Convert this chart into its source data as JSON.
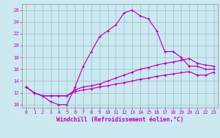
{
  "xlabel": "Windchill (Refroidissement éolien,°C)",
  "bg_color": "#cce8f0",
  "line_color": "#bb00bb",
  "grid_color": "#99bbcc",
  "xlim": [
    -0.5,
    23.5
  ],
  "ylim": [
    9.5,
    27
  ],
  "xticks": [
    0,
    1,
    2,
    3,
    4,
    5,
    6,
    7,
    8,
    9,
    10,
    11,
    12,
    13,
    14,
    15,
    16,
    17,
    18,
    19,
    20,
    21,
    22,
    23
  ],
  "yticks": [
    10,
    12,
    14,
    16,
    18,
    20,
    22,
    24,
    26
  ],
  "line1_x": [
    0,
    1,
    2,
    3,
    4,
    5,
    6,
    7,
    8,
    9,
    10,
    11,
    12,
    13,
    14,
    15,
    16,
    17,
    18,
    19,
    20,
    21,
    22,
    23
  ],
  "line1_y": [
    13.0,
    12.0,
    11.5,
    10.5,
    10.0,
    10.0,
    13.0,
    16.5,
    19.0,
    21.5,
    22.5,
    23.5,
    25.5,
    26.0,
    25.0,
    24.5,
    22.5,
    19.0,
    19.0,
    18.0,
    16.5,
    16.5,
    16.0,
    16.0
  ],
  "line2_x": [
    0,
    1,
    2,
    3,
    4,
    5,
    6,
    7,
    8,
    9,
    10,
    11,
    12,
    13,
    14,
    15,
    16,
    17,
    18,
    19,
    20,
    21,
    22,
    23
  ],
  "line2_y": [
    13.0,
    12.0,
    11.5,
    11.5,
    11.5,
    11.5,
    12.5,
    13.0,
    13.2,
    13.5,
    14.0,
    14.5,
    15.0,
    15.5,
    16.0,
    16.3,
    16.7,
    17.0,
    17.2,
    17.5,
    17.8,
    17.0,
    16.7,
    16.5
  ],
  "line3_x": [
    0,
    1,
    2,
    3,
    4,
    5,
    6,
    7,
    8,
    9,
    10,
    11,
    12,
    13,
    14,
    15,
    16,
    17,
    18,
    19,
    20,
    21,
    22,
    23
  ],
  "line3_y": [
    13.0,
    12.0,
    11.5,
    11.5,
    11.5,
    11.5,
    12.2,
    12.5,
    12.7,
    13.0,
    13.2,
    13.5,
    13.7,
    14.0,
    14.3,
    14.5,
    14.8,
    15.0,
    15.2,
    15.4,
    15.6,
    15.0,
    15.0,
    15.5
  ],
  "markersize": 3.5,
  "linewidth": 0.9,
  "tick_fontsize": 5.0,
  "label_fontsize": 6.0
}
